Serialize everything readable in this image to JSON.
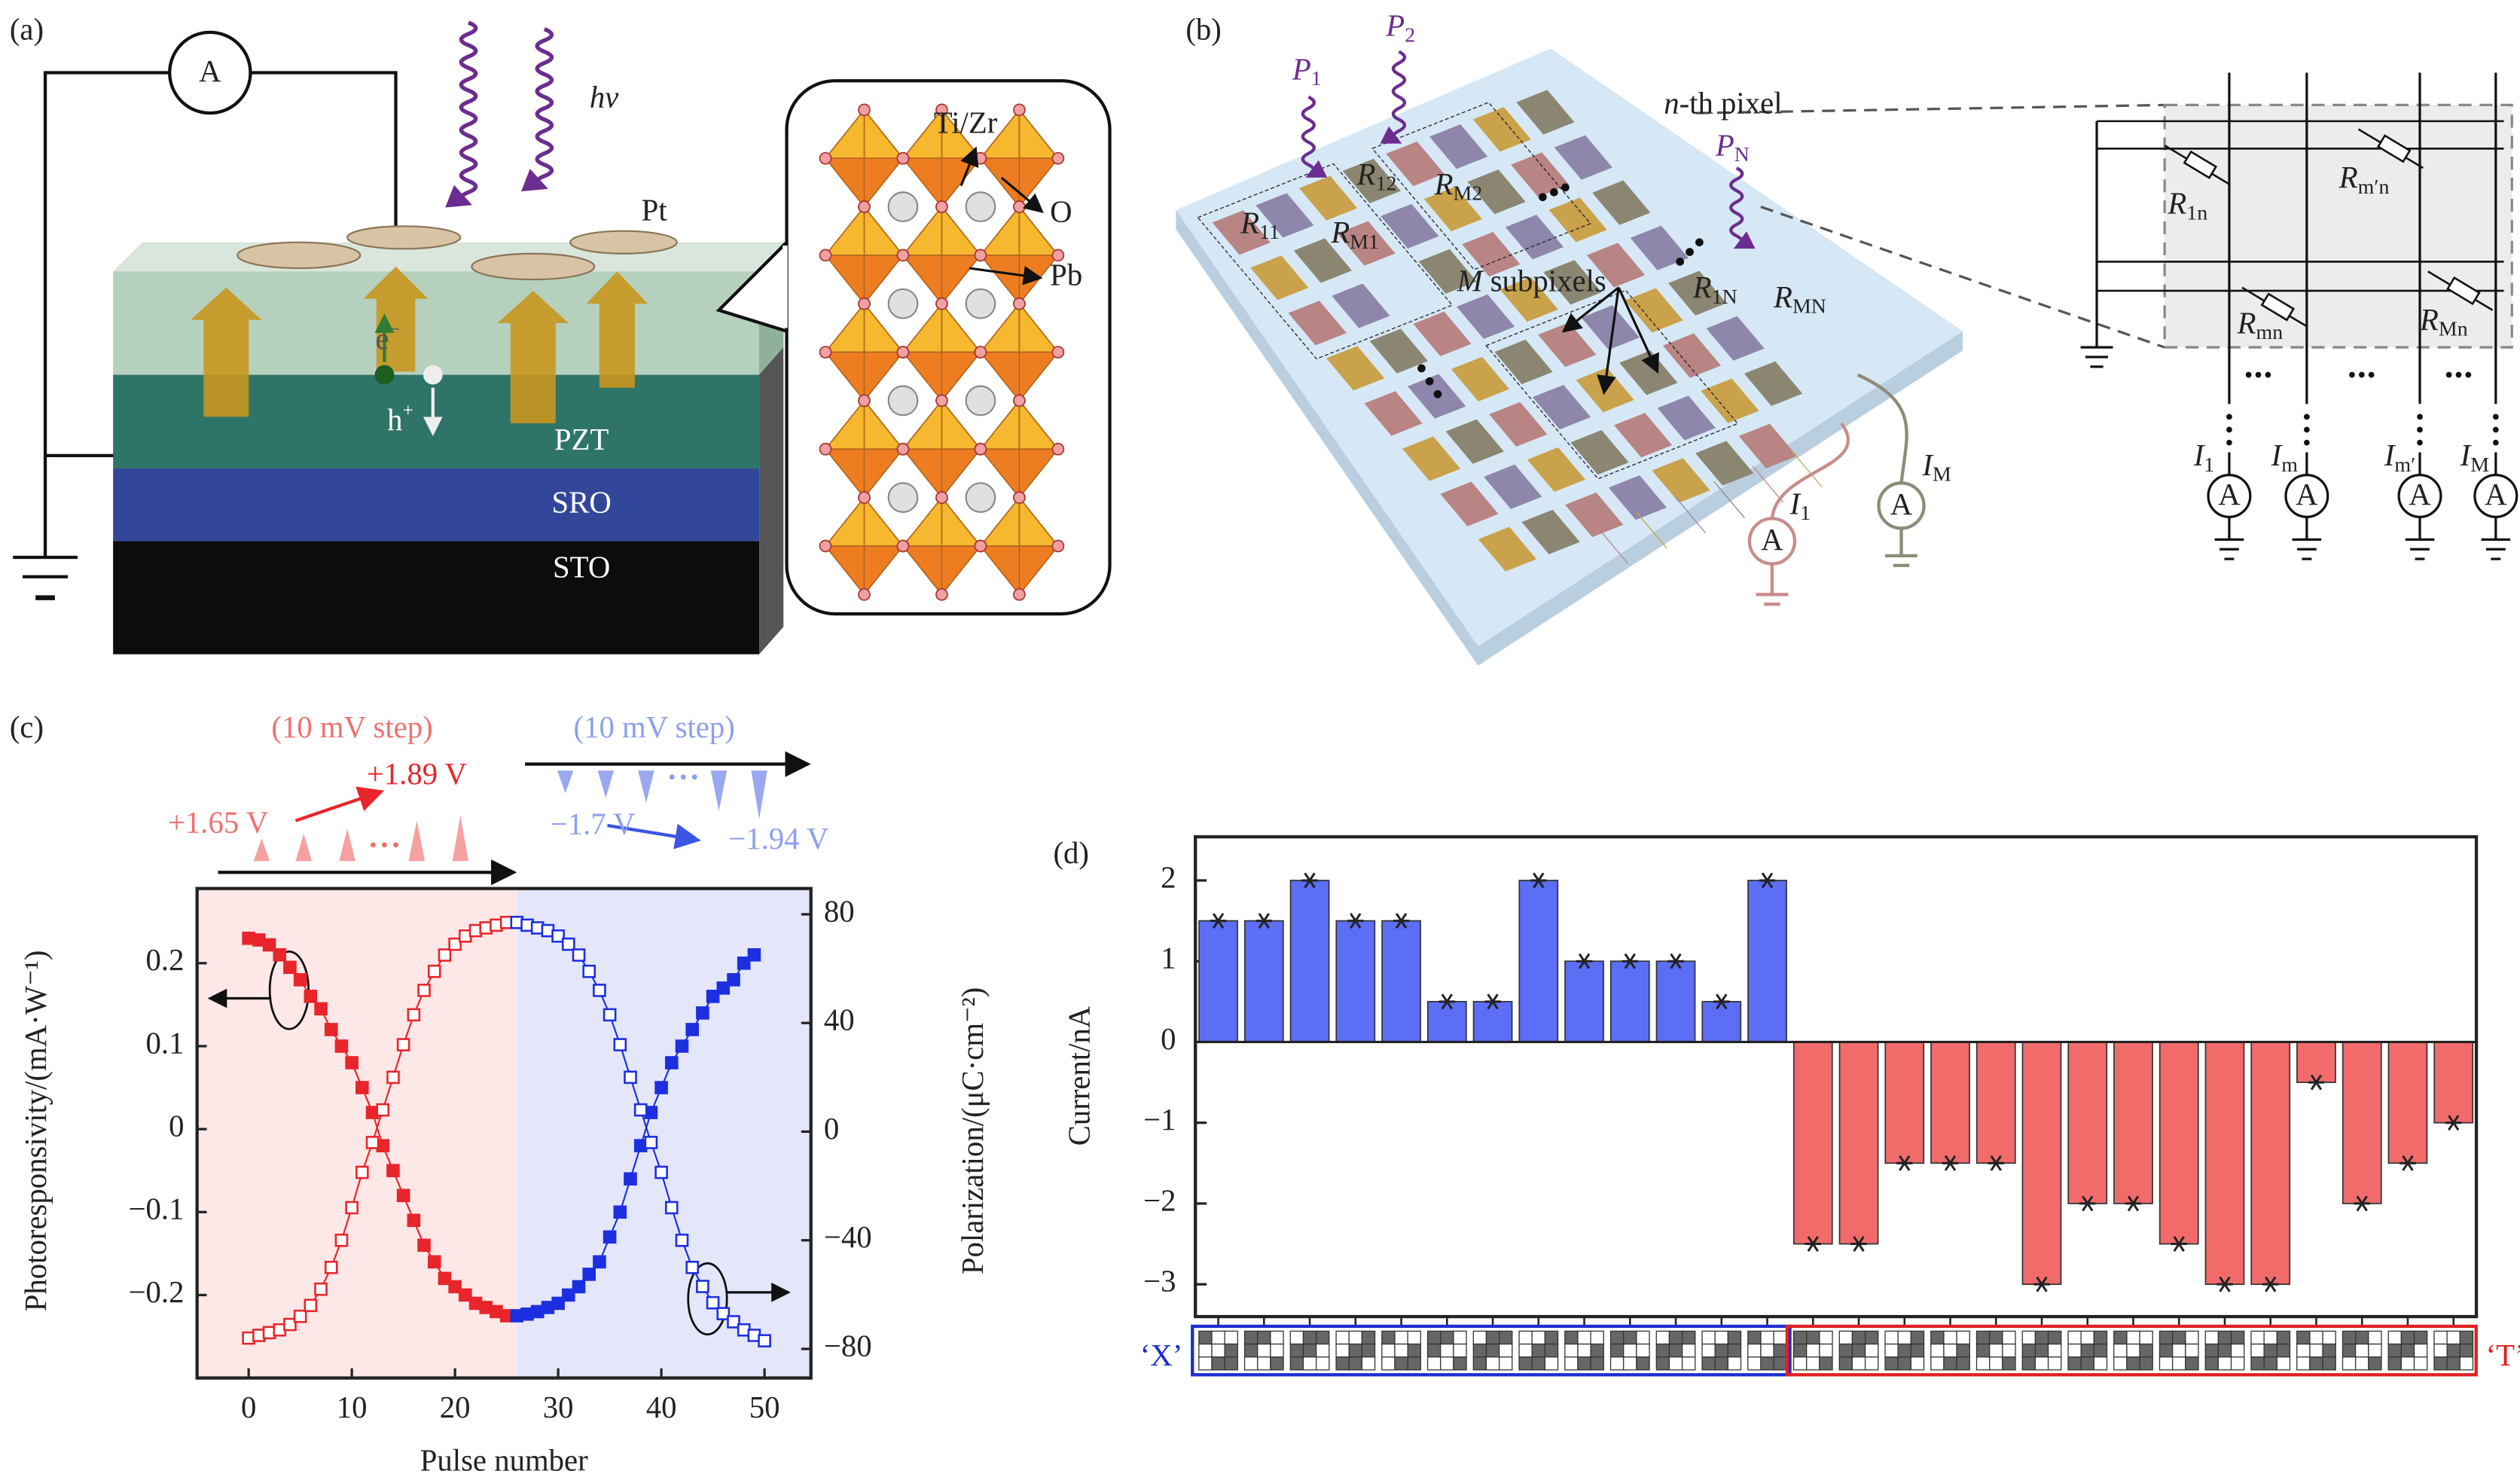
{
  "panels": {
    "a": {
      "label": "(a)",
      "meter": "A",
      "light": "hv",
      "electrode": "Pt",
      "b_site": "Ti/Zr",
      "oxygen": "O",
      "a_site": "Pb",
      "electron": {
        "base": "e",
        "sup": "−"
      },
      "hole": {
        "base": "h",
        "sup": "+"
      },
      "layers": [
        "PZT",
        "SRO",
        "STO"
      ]
    },
    "b": {
      "label": "(b)",
      "powers": [
        {
          "base": "P",
          "sub": "1"
        },
        {
          "base": "P",
          "sub": "2"
        },
        {
          "base": "P",
          "sub": "N"
        }
      ],
      "pixel": {
        "var": "n",
        "text": "-th pixel"
      },
      "resistors": [
        {
          "base": "R",
          "sub": "11"
        },
        {
          "base": "R",
          "sub": "12"
        },
        {
          "base": "R",
          "sub": "M2"
        },
        {
          "base": "R",
          "sub": "M1"
        },
        {
          "base": "R",
          "sub": "1N"
        },
        {
          "base": "R",
          "sub": "MN"
        }
      ],
      "subpixels": {
        "var": "M",
        "text": " subpixels"
      },
      "currents": [
        {
          "base": "I",
          "sub": "1"
        },
        {
          "base": "I",
          "sub": "M"
        }
      ],
      "meter": "A",
      "circuit": {
        "resistors": [
          {
            "base": "R",
            "sub": "1n"
          },
          {
            "base": "R",
            "sub": "m′n"
          },
          {
            "base": "R",
            "sub": "mn"
          },
          {
            "base": "R",
            "sub": "Mn"
          }
        ],
        "currents": [
          {
            "base": "I",
            "sub": "1"
          },
          {
            "base": "I",
            "sub": "m"
          },
          {
            "base": "I",
            "sub": "m′"
          },
          {
            "base": "I",
            "sub": "M"
          }
        ],
        "meter": "A"
      }
    }
  },
  "chart_data": [
    {
      "type": "line",
      "panel_label": "(c)",
      "xlabel": "Pulse number",
      "ylabel": "Photoresponsivity/(mA·W⁻¹)",
      "y2label": "Polarization/(μC·cm⁻²)",
      "xlim": [
        -5,
        54.5
      ],
      "xticks": [
        0,
        10,
        20,
        30,
        40,
        50
      ],
      "ylim": [
        -0.3,
        0.29
      ],
      "yticks": [
        {
          "value": -0.2,
          "label": "−0.2"
        },
        {
          "value": -0.1,
          "label": "−0.1"
        },
        0,
        0.1,
        0.2
      ],
      "y2lim": [
        -90.7,
        89.5
      ],
      "y2ticks": [
        {
          "value": -80,
          "label": "−80"
        },
        {
          "value": -40,
          "label": "−40"
        },
        0,
        40,
        80
      ],
      "annotations": [
        {
          "text": "(10 mV step)",
          "color": "#f07070"
        },
        {
          "text": "+1.89 V",
          "color": "#e8252a"
        },
        {
          "text": "+1.65 V",
          "color": "#f07070"
        },
        {
          "text": "−1.7 V",
          "color": "#8e9ef0"
        },
        {
          "text": "(10 mV step)",
          "color": "#8e9ef0"
        },
        {
          "text": "−1.94 V",
          "color": "#8e9ef0"
        }
      ],
      "series": [
        {
          "color": "#e8252a",
          "marker": "filled",
          "x": [
            0,
            1,
            2,
            3,
            4,
            5,
            6,
            7,
            8,
            9,
            10,
            11,
            12,
            13,
            14,
            15,
            16,
            17,
            18,
            19,
            20,
            21,
            22,
            23,
            24,
            25
          ],
          "values": [
            0.23,
            0.228,
            0.222,
            0.21,
            0.195,
            0.18,
            0.16,
            0.145,
            0.12,
            0.1,
            0.08,
            0.05,
            0.02,
            -0.02,
            -0.05,
            -0.08,
            -0.11,
            -0.14,
            -0.16,
            -0.18,
            -0.19,
            -0.2,
            -0.21,
            -0.215,
            -0.22,
            -0.225
          ]
        },
        {
          "color": "#1c2fe0",
          "marker": "filled",
          "x": [
            26,
            27,
            28,
            29,
            30,
            31,
            32,
            33,
            34,
            35,
            36,
            37,
            38,
            39,
            40,
            41,
            42,
            43,
            44,
            45,
            46,
            47,
            48,
            49
          ],
          "values": [
            -0.225,
            -0.223,
            -0.22,
            -0.215,
            -0.21,
            -0.2,
            -0.19,
            -0.175,
            -0.16,
            -0.13,
            -0.1,
            -0.06,
            -0.02,
            0.02,
            0.05,
            0.08,
            0.1,
            0.12,
            0.14,
            0.16,
            0.17,
            0.18,
            0.2,
            0.21
          ]
        },
        {
          "color": "#e8252a",
          "marker": "open",
          "axis": "y2",
          "x": [
            0,
            1,
            2,
            3,
            4,
            5,
            6,
            7,
            8,
            9,
            10,
            11,
            12,
            13,
            14,
            15,
            16,
            17,
            18,
            19,
            20,
            21,
            22,
            23,
            24,
            25
          ],
          "values": [
            -76,
            -75,
            -74,
            -73,
            -71,
            -68,
            -64,
            -58,
            -50,
            -40,
            -28,
            -15,
            -4,
            8,
            20,
            32,
            43,
            52,
            59,
            65,
            69,
            72,
            74,
            75,
            76,
            77
          ]
        },
        {
          "color": "#1c2fe0",
          "marker": "open",
          "axis": "y2",
          "x": [
            26,
            27,
            28,
            29,
            30,
            31,
            32,
            33,
            34,
            35,
            36,
            37,
            38,
            39,
            40,
            41,
            42,
            43,
            44,
            45,
            46,
            47,
            48,
            49,
            50
          ],
          "values": [
            77,
            76,
            75,
            74,
            72,
            69,
            65,
            59,
            52,
            43,
            32,
            20,
            8,
            -4,
            -15,
            -28,
            -40,
            -50,
            -57,
            -63,
            -67,
            -70,
            -73,
            -75,
            -77
          ]
        }
      ]
    },
    {
      "type": "bar",
      "panel_label": "(d)",
      "ylabel": "Current/nA",
      "ylim": [
        -3.4,
        2.54
      ],
      "yticks": [
        {
          "value": -3,
          "label": "−3"
        },
        {
          "value": -2,
          "label": "−2"
        },
        {
          "value": -1,
          "label": "−1"
        },
        0,
        1,
        2
      ],
      "values": [
        1.5,
        1.5,
        2,
        1.5,
        1.5,
        0.5,
        0.5,
        2,
        1,
        1,
        1,
        0.5,
        2,
        -2.5,
        -2.5,
        -1.5,
        -1.5,
        -1.5,
        -3,
        -2,
        -2,
        -2.5,
        -3,
        -3,
        -0.5,
        -2,
        -1.5,
        -1
      ],
      "positive_color": "#5b6ef5",
      "negative_color": "#f26b6b",
      "group_labels": [
        {
          "text": "‘X’",
          "color": "#1c2fd0"
        },
        {
          "text": "‘T’",
          "color": "#e02020"
        }
      ]
    }
  ]
}
